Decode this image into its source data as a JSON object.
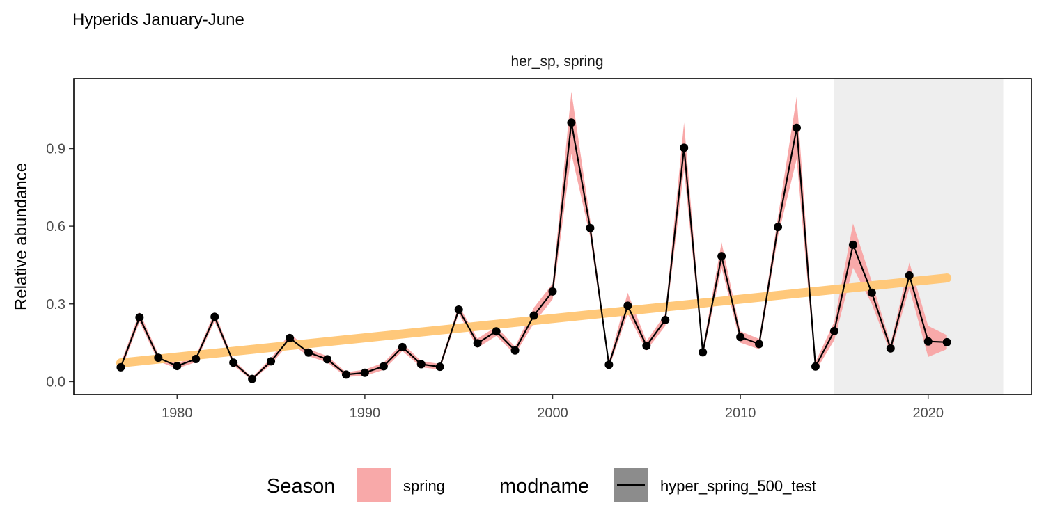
{
  "chart_data": {
    "type": "line",
    "title": "Hyperids January-June",
    "facet_label": "her_sp, spring",
    "ylabel": "Relative abundance",
    "xlabel": "",
    "xlim": [
      1974.5,
      1826.0
    ],
    "ylim": [
      -0.05,
      1.17
    ],
    "x_ticks": [
      1980,
      1990,
      2000,
      2010,
      2020
    ],
    "y_ticks": [
      0.0,
      0.3,
      0.6,
      0.9
    ],
    "y_tick_labels": [
      "0.0",
      "0.3",
      "0.6",
      "0.9"
    ],
    "x_tick_labels": [
      "1980",
      "1990",
      "2000",
      "2010",
      "2020"
    ],
    "shaded_region": {
      "x_start": 2015,
      "x_end": 2024
    },
    "series": [
      {
        "name": "hyper_spring_500_test",
        "x": [
          1977,
          1978,
          1979,
          1980,
          1981,
          1982,
          1983,
          1984,
          1985,
          1986,
          1987,
          1988,
          1989,
          1990,
          1991,
          1992,
          1993,
          1994,
          1995,
          1996,
          1997,
          1998,
          1999,
          2000,
          2001,
          2002,
          2003,
          2004,
          2005,
          2006,
          2007,
          2008,
          2009,
          2010,
          2011,
          2012,
          2013,
          2014,
          2015,
          2016,
          2017,
          2018,
          2019,
          2020,
          2021
        ],
        "y": [
          0.055,
          0.248,
          0.092,
          0.06,
          0.087,
          0.25,
          0.073,
          0.01,
          0.078,
          0.168,
          0.112,
          0.086,
          0.027,
          0.034,
          0.059,
          0.133,
          0.067,
          0.057,
          0.278,
          0.148,
          0.194,
          0.12,
          0.255,
          0.348,
          1.0,
          0.593,
          0.065,
          0.293,
          0.138,
          0.238,
          0.903,
          0.113,
          0.484,
          0.172,
          0.145,
          0.597,
          0.98,
          0.058,
          0.195,
          0.528,
          0.343,
          0.128,
          0.41,
          0.155,
          0.152
        ],
        "lower": [
          0.04,
          0.23,
          0.078,
          0.05,
          0.075,
          0.232,
          0.062,
          0.004,
          0.066,
          0.15,
          0.098,
          0.074,
          0.018,
          0.022,
          0.045,
          0.118,
          0.055,
          0.046,
          0.262,
          0.13,
          0.176,
          0.105,
          0.225,
          0.318,
          0.88,
          0.56,
          0.052,
          0.262,
          0.12,
          0.215,
          0.82,
          0.098,
          0.44,
          0.15,
          0.125,
          0.56,
          0.86,
          0.04,
          0.16,
          0.44,
          0.3,
          0.11,
          0.36,
          0.095,
          0.125
        ],
        "upper": [
          0.07,
          0.268,
          0.106,
          0.07,
          0.099,
          0.268,
          0.084,
          0.016,
          0.09,
          0.186,
          0.126,
          0.098,
          0.036,
          0.046,
          0.073,
          0.148,
          0.079,
          0.068,
          0.294,
          0.166,
          0.212,
          0.135,
          0.285,
          0.378,
          1.12,
          0.626,
          0.078,
          0.343,
          0.156,
          0.261,
          1.0,
          0.128,
          0.538,
          0.194,
          0.165,
          0.634,
          1.1,
          0.076,
          0.23,
          0.61,
          0.386,
          0.146,
          0.46,
          0.215,
          0.179
        ]
      }
    ],
    "trend": {
      "x": [
        1977,
        2021
      ],
      "y": [
        0.072,
        0.4
      ],
      "color": "#ffc87a"
    },
    "colors": {
      "ribbon": "#f8a9a9",
      "line": "#000000",
      "shade": "#eeeeee",
      "trend": "#ffc87a",
      "legend_line_bg": "#8c8c8c"
    },
    "legend": {
      "placement": "bottom",
      "season_title": "Season",
      "season_label": "spring",
      "modname_title": "modname",
      "modname_label": "hyper_spring_500_test"
    }
  }
}
